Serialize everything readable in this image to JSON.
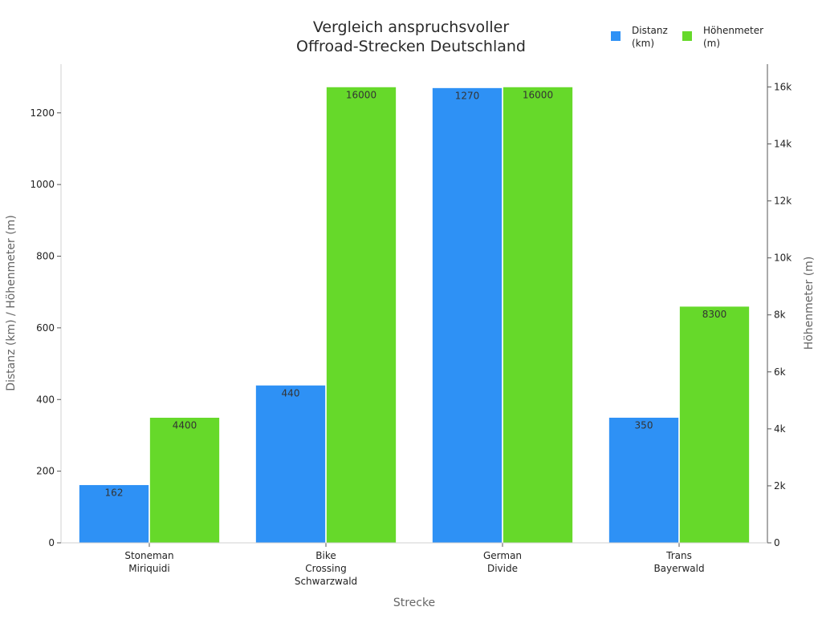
{
  "chart_data": {
    "type": "bar",
    "title": [
      "Vergleich anspruchsvoller",
      "Offroad-Strecken Deutschland"
    ],
    "xlabel": "Strecke",
    "ylabel_left": "Distanz (km) / Höhenmeter (m)",
    "ylabel_right": "Höhenmeter (m)",
    "categories": [
      "Stoneman\nMiriquidi",
      "Bike\nCrossing\nSchwarzwald",
      "German\nDivide",
      "Trans\nBayerwald"
    ],
    "series": [
      {
        "name": "Distanz\n(km)",
        "axis": "left",
        "color": "#2E91F5",
        "values": [
          162,
          440,
          1270,
          350
        ]
      },
      {
        "name": "Höhenmeter\n(m)",
        "axis": "right",
        "color": "#66D92A",
        "values": [
          4400,
          16000,
          16000,
          8300
        ]
      }
    ],
    "ylim_left": [
      0,
      1336
    ],
    "ylim_right": [
      0,
      16800
    ],
    "yticks_left": [
      "0",
      "200",
      "400",
      "600",
      "800",
      "1000",
      "1200"
    ],
    "yticks_left_values": [
      0,
      200,
      400,
      600,
      800,
      1000,
      1200
    ],
    "yticks_right": [
      "0",
      "2k",
      "4k",
      "6k",
      "8k",
      "10k",
      "12k",
      "14k",
      "16k"
    ],
    "yticks_right_values": [
      0,
      2000,
      4000,
      6000,
      8000,
      10000,
      12000,
      14000,
      16000
    ],
    "grid": false,
    "legend_position": "top-right"
  }
}
